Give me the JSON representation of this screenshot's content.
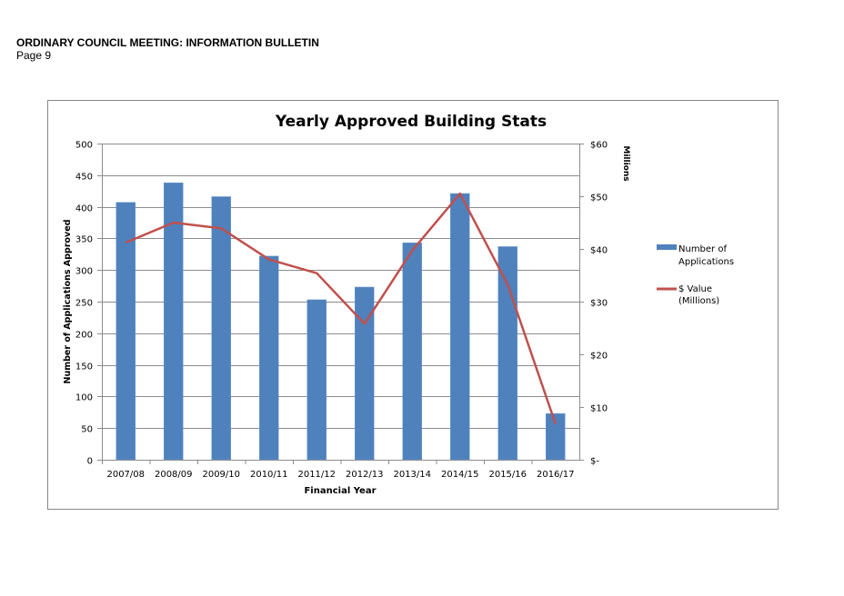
{
  "document": {
    "header": "ORDINARY COUNCIL MEETING: INFORMATION BULLETIN",
    "page": "Page 9"
  },
  "chart_data": {
    "type": "bar",
    "title": "Yearly Approved Building Stats",
    "xlabel": "Financial Year",
    "ylabel": "Number of Applications Approved",
    "y2label": "Millions",
    "categories": [
      "2007/08",
      "2008/09",
      "2009/10",
      "2010/11",
      "2011/12",
      "2012/13",
      "2013/14",
      "2014/15",
      "2015/16",
      "2016/17"
    ],
    "ylim": [
      0,
      500
    ],
    "yticks": [
      0,
      50,
      100,
      150,
      200,
      250,
      300,
      350,
      400,
      450,
      500
    ],
    "y2lim": [
      0,
      60
    ],
    "y2ticks": [
      0,
      10,
      20,
      30,
      40,
      50,
      60
    ],
    "y2ticklabels": [
      "$-",
      "$10",
      "$20",
      "$30",
      "$40",
      "$50",
      "$60"
    ],
    "grid": true,
    "legend_position": "right",
    "series": [
      {
        "name": "Number of Applications",
        "type": "bar",
        "axis": "left",
        "color": "#4f81bd",
        "values": [
          407,
          438,
          416,
          322,
          253,
          273,
          343,
          421,
          337,
          73
        ]
      },
      {
        "name": "$ Value (Millions)",
        "type": "line",
        "axis": "right",
        "color": "#c0504d",
        "values": [
          41.2,
          45.0,
          43.9,
          38.0,
          35.4,
          25.8,
          39.7,
          50.5,
          33.2,
          6.8
        ]
      }
    ],
    "legend": [
      {
        "lines": [
          "Number of",
          "Applications"
        ]
      },
      {
        "lines": [
          "$ Value",
          "(Millions)"
        ]
      }
    ]
  }
}
